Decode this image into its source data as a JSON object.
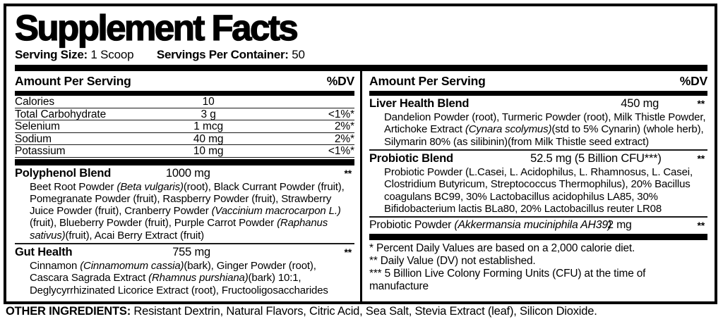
{
  "colors": {
    "ink": "#000000",
    "paper": "#ffffff"
  },
  "title": "Supplement Facts",
  "serving": {
    "size_label": "Serving Size:",
    "size_value": "1 Scoop",
    "container_label": "Servings Per Container:",
    "container_value": "50"
  },
  "left": {
    "header": {
      "amount": "Amount Per Serving",
      "dv": "%DV"
    },
    "nutrients": [
      {
        "name": "Calories",
        "amount": "10",
        "dv": ""
      },
      {
        "name": "Total Carbohydrate",
        "amount": "3 g",
        "dv": "<1%*"
      },
      {
        "name": "Selenium",
        "amount": "1 mcg",
        "dv": "2%*"
      },
      {
        "name": "Sodium",
        "amount": "40 mg",
        "dv": "2%*"
      },
      {
        "name": "Potassium",
        "amount": "10 mg",
        "dv": "<1%*"
      }
    ],
    "polyphenol": {
      "name": "Polyphenol Blend",
      "amount": "1000 mg",
      "dv": "**",
      "desc": [
        {
          "t": "Beet Root Powder "
        },
        {
          "t": "(Beta vulgaris)",
          "i": true
        },
        {
          "t": "(root), Black Currant Powder (fruit), Pomegranate Powder (fruit), Raspberry Powder (fruit), Strawberry Juice Powder (fruit), Cranberry Powder "
        },
        {
          "t": "(Vaccinium macrocarpon L.)",
          "i": true
        },
        {
          "t": "(fruit), Blueberry Powder (fruit), Purple Carrot Powder "
        },
        {
          "t": "(Raphanus sativus)",
          "i": true
        },
        {
          "t": "(fruit), Acai Berry Extract (fruit)"
        }
      ]
    },
    "gut": {
      "name": "Gut Health",
      "amount": "755 mg",
      "dv": "**",
      "desc": [
        {
          "t": "Cinnamon "
        },
        {
          "t": "(Cinnamomum cassia)",
          "i": true
        },
        {
          "t": "(bark), Ginger Powder (root), Cascara Sagrada Extract "
        },
        {
          "t": "(Rhamnus purshiana)",
          "i": true
        },
        {
          "t": "(bark) 10:1, Deglycyrrhizinated Licorice Extract (root), Fructooligosaccharides"
        }
      ]
    }
  },
  "right": {
    "header": {
      "amount": "Amount Per Serving",
      "dv": "%DV"
    },
    "liver": {
      "name": "Liver Health Blend",
      "amount": "450 mg",
      "dv": "**",
      "desc": [
        {
          "t": "Dandelion Powder (root), Turmeric Powder (root), Milk Thistle Powder, Artichoke Extract "
        },
        {
          "t": "(Cynara scolymus)",
          "i": true
        },
        {
          "t": "(std to 5% Cynarin) (whole herb), Silymarin 80% (as silibinin)(from Milk Thistle seed extract)"
        }
      ]
    },
    "probiotic_blend": {
      "name": "Probiotic Blend",
      "amount": "52.5 mg (5 Billion CFU***)",
      "dv": "**",
      "desc": [
        {
          "t": "Probiotic Powder (L.Casei, L. Acidophilus, L. Rhamnosus, L. Casei, Clostridium Butyricum, Streptococcus Thermophilus), 20% Bacillus coagulans BC99, 30% Lactobacillus acidophilus LA85, 30% Bifidobacterium lactis BLa80, 20% Lactobacillus reuter LR08"
        }
      ]
    },
    "probiotic_powder": {
      "name_normal": "Probiotic Powder ",
      "name_italic": "(Akkermansia muciniphila AH39)",
      "amount": "2 mg",
      "dv": "**"
    },
    "footnotes": [
      "* Percent Daily Values are based on a 2,000 calorie diet.",
      "** Daily Value (DV) not established.",
      "*** 5 Billion Live Colony Forming Units (CFU) at the time of manufacture"
    ]
  },
  "other_ingredients": {
    "label": "OTHER INGREDIENTS:",
    "text": " Resistant Dextrin, Natural Flavors, Citric Acid, Sea Salt, Stevia Extract (leaf), Silicon Dioxide."
  }
}
